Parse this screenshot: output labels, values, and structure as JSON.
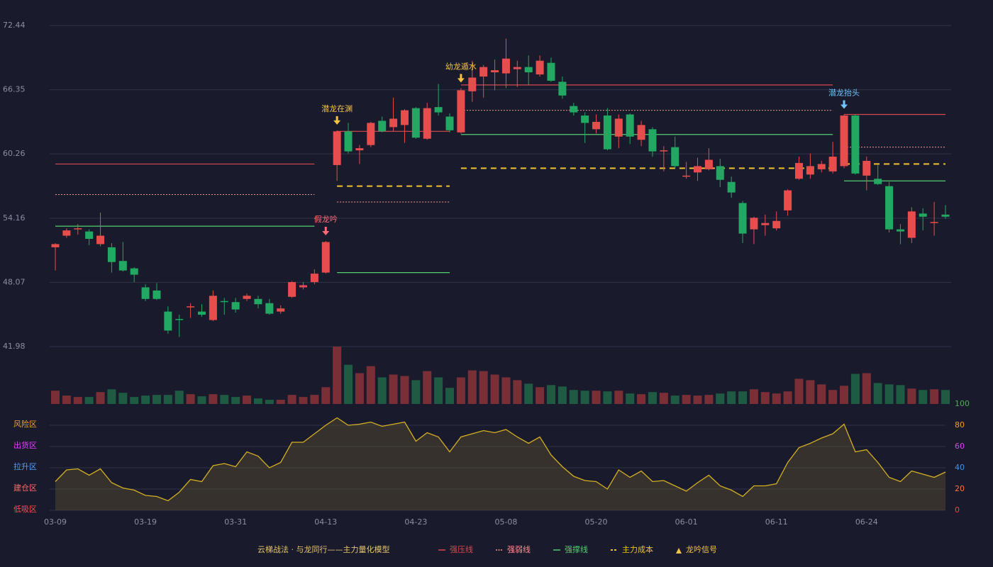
{
  "chart_data": {
    "type": "candlestick",
    "legend_title": "云梯战法 · 与龙同行——主力量化模型",
    "signal_legend": "龙吟信号",
    "up_color": "#e84d4d",
    "down_color": "#22a862",
    "volume_up_color": "#7a2f37",
    "volume_down_color": "#1e5b42",
    "categories": [
      "03-09",
      null,
      null,
      null,
      null,
      null,
      null,
      null,
      "03-19",
      null,
      null,
      null,
      null,
      null,
      null,
      null,
      "03-31",
      null,
      null,
      null,
      null,
      null,
      null,
      null,
      "04-13",
      null,
      null,
      null,
      null,
      null,
      null,
      null,
      "04-23",
      null,
      null,
      null,
      null,
      null,
      null,
      null,
      "05-08",
      null,
      null,
      null,
      null,
      null,
      null,
      null,
      "05-20",
      null,
      null,
      null,
      null,
      null,
      null,
      null,
      "06-01",
      null,
      null,
      null,
      null,
      null,
      null,
      null,
      "06-11",
      null,
      null,
      null,
      null,
      null,
      null,
      null,
      "06-24",
      null,
      null,
      null,
      null,
      null,
      null,
      null
    ],
    "open": [
      51.4,
      52.5,
      53.1,
      52.9,
      51.7,
      51.4,
      50.1,
      49.4,
      47.6,
      47.3,
      45.3,
      44.6,
      45.7,
      45.3,
      44.5,
      46.3,
      46.2,
      46.5,
      46.5,
      46.1,
      45.3,
      46.7,
      47.6,
      48.1,
      49.0,
      59.2,
      62.4,
      60.6,
      61.1,
      63.4,
      62.8,
      63.0,
      64.6,
      61.7,
      64.7,
      63.8,
      62.3,
      66.2,
      67.6,
      68.0,
      67.9,
      68.3,
      68.5,
      67.8,
      68.9,
      67.1,
      64.8,
      63.9,
      62.6,
      63.9,
      61.9,
      64.0,
      61.6,
      62.6,
      60.5,
      60.9,
      58.1,
      58.5,
      58.8,
      59.1,
      57.6,
      55.6,
      53.1,
      53.5,
      53.2,
      54.9,
      57.9,
      58.3,
      58.8,
      58.6,
      59.1,
      63.9,
      58.2,
      57.9,
      57.2,
      53.1,
      52.3,
      54.6,
      53.7,
      54.5
    ],
    "high": [
      51.8,
      53.2,
      53.6,
      53.1,
      54.7,
      51.8,
      51.9,
      49.5,
      47.9,
      48.0,
      45.8,
      45.0,
      46.1,
      46.0,
      47.3,
      46.6,
      46.6,
      47.0,
      46.8,
      46.5,
      45.9,
      48.2,
      48.1,
      49.3,
      52.0,
      62.5,
      63.2,
      61.1,
      63.3,
      63.8,
      65.6,
      64.5,
      64.7,
      65.1,
      66.9,
      64.1,
      66.5,
      69.1,
      68.7,
      69.2,
      71.2,
      69.1,
      69.6,
      69.6,
      69.4,
      67.6,
      65.1,
      64.2,
      64.0,
      64.6,
      64.0,
      64.1,
      63.4,
      62.8,
      61.0,
      61.9,
      59.5,
      59.9,
      60.8,
      59.8,
      58.1,
      55.8,
      54.3,
      54.5,
      54.8,
      56.9,
      60.0,
      60.3,
      59.6,
      61.4,
      64.0,
      64.0,
      60.0,
      59.2,
      57.6,
      53.6,
      55.2,
      55.1,
      55.7,
      55.4
    ],
    "low": [
      49.2,
      52.3,
      52.6,
      51.6,
      51.5,
      49.0,
      49.1,
      48.1,
      46.3,
      46.4,
      43.2,
      42.9,
      44.7,
      44.8,
      44.4,
      45.0,
      45.2,
      46.3,
      45.6,
      45.0,
      45.1,
      46.6,
      47.4,
      47.9,
      48.9,
      57.7,
      60.3,
      59.3,
      60.9,
      62.3,
      62.4,
      61.3,
      61.7,
      61.6,
      63.9,
      62.3,
      62.2,
      65.2,
      65.6,
      66.3,
      66.5,
      66.6,
      66.8,
      67.6,
      67.1,
      65.5,
      63.9,
      61.3,
      62.2,
      60.6,
      60.8,
      61.2,
      61.0,
      60.0,
      58.6,
      58.9,
      57.9,
      57.7,
      58.7,
      57.1,
      56.1,
      51.8,
      51.7,
      52.5,
      53.0,
      54.4,
      57.8,
      57.9,
      58.5,
      58.4,
      58.9,
      58.3,
      56.8,
      57.3,
      52.8,
      51.7,
      51.8,
      53.0,
      52.5,
      54.1
    ],
    "close": [
      51.7,
      53.0,
      53.2,
      52.2,
      52.5,
      50.0,
      49.2,
      48.8,
      46.5,
      46.5,
      43.5,
      44.5,
      45.8,
      45.0,
      46.8,
      46.2,
      45.5,
      46.8,
      46.0,
      45.1,
      45.6,
      48.1,
      47.8,
      48.9,
      51.9,
      62.4,
      60.5,
      60.8,
      63.2,
      62.4,
      63.6,
      64.4,
      61.8,
      64.6,
      64.2,
      62.5,
      66.3,
      67.5,
      68.5,
      68.2,
      69.3,
      68.5,
      68.0,
      69.1,
      67.2,
      65.8,
      64.2,
      63.2,
      63.3,
      60.7,
      63.6,
      61.9,
      63.0,
      60.5,
      60.6,
      59.1,
      58.2,
      59.1,
      59.7,
      57.8,
      56.6,
      52.7,
      54.2,
      53.7,
      53.9,
      56.8,
      59.4,
      59.1,
      59.3,
      60.0,
      63.9,
      58.4,
      59.6,
      57.4,
      53.1,
      52.9,
      54.8,
      54.3,
      53.8,
      54.3
    ],
    "volume": [
      19,
      12,
      10,
      10,
      17,
      21,
      16,
      10,
      12,
      13,
      13,
      19,
      14,
      11,
      14,
      13,
      10,
      12,
      8,
      6,
      6,
      13,
      10,
      13,
      24,
      82,
      56,
      44,
      54,
      38,
      42,
      40,
      34,
      47,
      38,
      23,
      38,
      48,
      47,
      42,
      38,
      34,
      29,
      24,
      27,
      25,
      20,
      19,
      19,
      18,
      19,
      15,
      14,
      17,
      16,
      12,
      13,
      12,
      13,
      15,
      18,
      18,
      21,
      17,
      15,
      18,
      36,
      34,
      28,
      20,
      26,
      43,
      44,
      30,
      28,
      27,
      22,
      20,
      21,
      20
    ],
    "ylim": [
      41.98,
      72.44
    ],
    "yticks": [
      72.44,
      66.35,
      60.26,
      54.16,
      48.07,
      41.98
    ],
    "grid": true,
    "levels": [
      {
        "name": "强压线",
        "color": "#d9484e",
        "style": "solid",
        "segments": [
          {
            "x": [
              0,
              23
            ],
            "value": 59.3
          },
          {
            "x": [
              25,
              35
            ],
            "value": 62.4
          },
          {
            "x": [
              36,
              69
            ],
            "value": 66.8
          },
          {
            "x": [
              70,
              79
            ],
            "value": 64.0
          }
        ]
      },
      {
        "name": "强弱线",
        "color": "#ff8f8f",
        "style": "dotted",
        "segments": [
          {
            "x": [
              0,
              23
            ],
            "value": 56.4
          },
          {
            "x": [
              25,
              35
            ],
            "value": 55.7
          },
          {
            "x": [
              36,
              69
            ],
            "value": 64.4
          },
          {
            "x": [
              70,
              79
            ],
            "value": 60.9
          }
        ]
      },
      {
        "name": "强撑线",
        "color": "#52d070",
        "style": "solid",
        "segments": [
          {
            "x": [
              0,
              23
            ],
            "value": 53.4
          },
          {
            "x": [
              25,
              35
            ],
            "value": 49.0
          },
          {
            "x": [
              36,
              69
            ],
            "value": 62.1
          },
          {
            "x": [
              70,
              79
            ],
            "value": 57.7
          }
        ]
      },
      {
        "name": "主力成本",
        "color": "#f2c12e",
        "style": "dashed",
        "segments": [
          {
            "x": [
              25,
              35
            ],
            "value": 57.2
          },
          {
            "x": [
              36,
              69
            ],
            "value": 58.9
          },
          {
            "x": [
              70,
              79
            ],
            "value": 59.3
          }
        ]
      }
    ],
    "signals": [
      {
        "index": 24,
        "label": "假龙吟",
        "color": "#ff6b7a"
      },
      {
        "index": 25,
        "label": "潜龙在渊",
        "color": "#f5c342"
      },
      {
        "index": 36,
        "label": "幼龙遁水",
        "color": "#f5c342"
      },
      {
        "index": 70,
        "label": "潜龙抬头",
        "color": "#6ec6ff"
      }
    ],
    "oscillator": {
      "type": "line",
      "color": "#d4b020",
      "values": [
        27,
        38,
        39,
        33,
        39,
        26,
        21,
        19,
        14,
        13,
        9,
        17,
        29,
        27,
        42,
        44,
        41,
        55,
        51,
        40,
        45,
        64,
        64,
        72,
        80,
        87,
        80,
        81,
        83,
        79,
        81,
        83,
        65,
        73,
        69,
        55,
        69,
        72,
        75,
        73,
        76,
        69,
        63,
        69,
        52,
        41,
        32,
        28,
        27,
        20,
        38,
        31,
        37,
        27,
        28,
        23,
        18,
        26,
        33,
        23,
        19,
        13,
        23,
        23,
        25,
        45,
        59,
        63,
        68,
        72,
        81,
        55,
        57,
        45,
        31,
        27,
        37,
        34,
        31,
        36
      ],
      "ylim": [
        0,
        100
      ],
      "yticks": [
        100,
        80,
        60,
        40,
        20,
        0
      ],
      "ytick_colors": [
        "#4caf50",
        "#f0a020",
        "#e040fb",
        "#4a90e2",
        "#ff7043",
        "#ff3b3b"
      ],
      "zones": [
        {
          "label": "风险区",
          "value": 80,
          "color": "#f0a030"
        },
        {
          "label": "出货区",
          "value": 60,
          "color": "#e040fb"
        },
        {
          "label": "拉升区",
          "value": 40,
          "color": "#5b9bff"
        },
        {
          "label": "建仓区",
          "value": 20,
          "color": "#ff6b6b"
        },
        {
          "label": "低吸区",
          "value": 0,
          "color": "#ff4d4d"
        }
      ]
    }
  }
}
